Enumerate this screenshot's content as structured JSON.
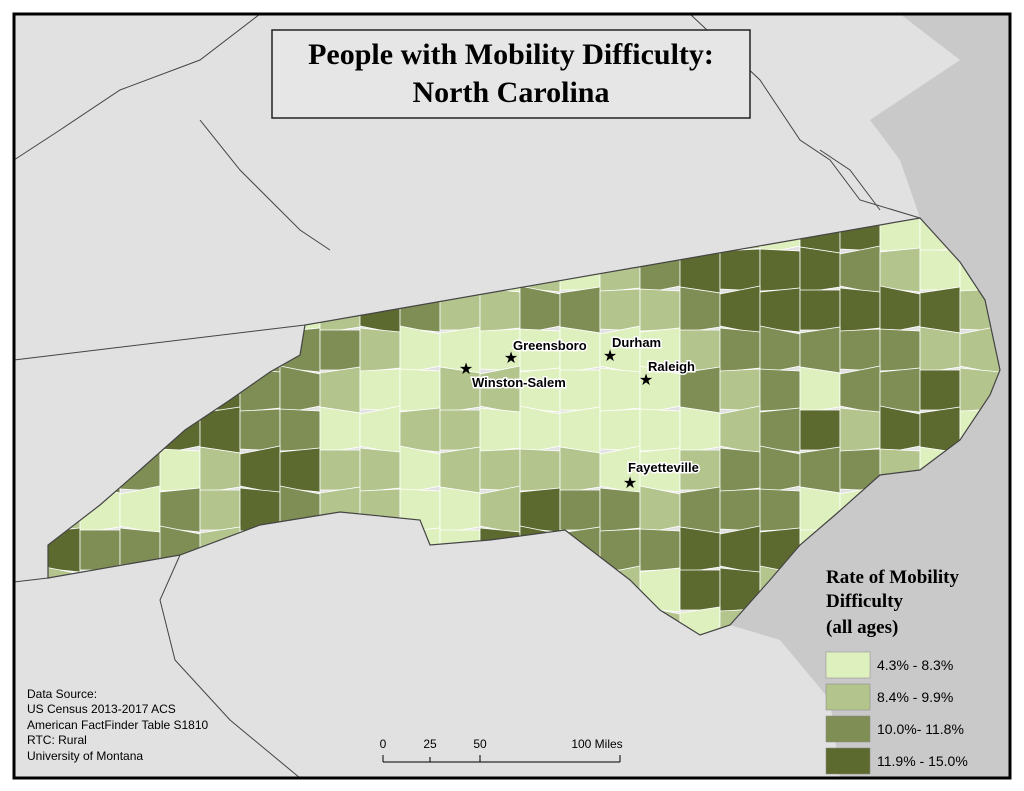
{
  "title": [
    "People with Mobility Difficulty:",
    "North Carolina"
  ],
  "cities": [
    {
      "name": "Greensboro"
    },
    {
      "name": "Durham"
    },
    {
      "name": "Raleigh"
    },
    {
      "name": "Winston-Salem"
    },
    {
      "name": "Fayetteville"
    }
  ],
  "legend": {
    "title": [
      "Rate of Mobility",
      "Difficulty",
      "(all ages)"
    ],
    "items": [
      {
        "label": "4.3% - 8.3%",
        "color": "#dff0bf"
      },
      {
        "label": "8.4% - 9.9%",
        "color": "#b3c48d"
      },
      {
        "label": "10.0%- 11.8%",
        "color": "#7f8e54"
      },
      {
        "label": "11.9% - 15.0%",
        "color": "#5d6a2f"
      }
    ]
  },
  "scale_bar": {
    "labels": [
      "0",
      "25",
      "50",
      "100 Miles"
    ]
  },
  "source": [
    "Data Source:",
    "US Census 2013-2017 ACS",
    "American FactFinder Table S1810",
    "RTC: Rural",
    "University of Montana"
  ]
}
